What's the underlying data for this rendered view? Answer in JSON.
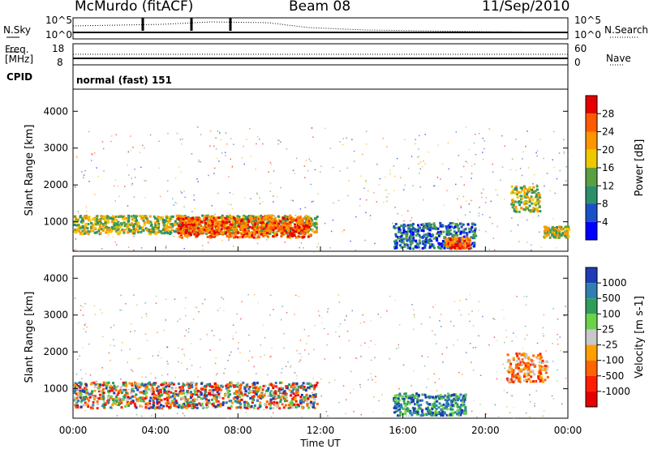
{
  "header": {
    "station": "McMurdo (fitACF)",
    "beam": "Beam 08",
    "date": "11/Sep/2010"
  },
  "noise_panel": {
    "left_label": "N.Sky",
    "right_label": "N.Search",
    "left_ticks": [
      "10^5",
      "10^0"
    ],
    "right_ticks": [
      "10^5",
      "10^0"
    ]
  },
  "freq_panel": {
    "left_label_line1": "Freq.",
    "left_label_line2": "[MHz]",
    "left_ticks": [
      "18",
      "8"
    ],
    "right_label": "Nave",
    "right_ticks": [
      "60",
      "0"
    ]
  },
  "cpid_panel": {
    "label": "CPID",
    "text": "normal (fast) 151"
  },
  "chart_data": [
    {
      "type": "heatmap",
      "title": "",
      "xlabel": "Time UT",
      "ylabel": "Slant Range [km]",
      "x_tick_labels": [
        "00:00",
        "04:00",
        "08:00",
        "12:00",
        "16:00",
        "20:00",
        "00:00"
      ],
      "y_tick_labels": [
        "1000",
        "2000",
        "3000",
        "4000"
      ],
      "ylim": [
        200,
        4600
      ],
      "colorbar": {
        "label": "Power [dB]",
        "ticks": [
          "28",
          "24",
          "20",
          "16",
          "12",
          "8",
          "4"
        ],
        "colors": [
          "#e60000",
          "#ff5a00",
          "#ff9600",
          "#f0c800",
          "#5aa040",
          "#2d8f6a",
          "#1a50c8",
          "#0000ff"
        ]
      },
      "regions": [
        {
          "t0": 0.0,
          "t1": 11.8,
          "r0": 700,
          "r1": 1200,
          "level": "mid"
        },
        {
          "t0": 5.0,
          "t1": 11.5,
          "r0": 600,
          "r1": 1150,
          "level": "high"
        },
        {
          "t0": 15.5,
          "t1": 19.5,
          "r0": 300,
          "r1": 1000,
          "level": "low"
        },
        {
          "t0": 18.0,
          "t1": 19.2,
          "r0": 300,
          "r1": 600,
          "level": "high"
        },
        {
          "t0": 21.2,
          "t1": 22.6,
          "r0": 1300,
          "r1": 2000,
          "level": "mid"
        },
        {
          "t0": 22.8,
          "t1": 24.0,
          "r0": 600,
          "r1": 900,
          "level": "mid"
        }
      ]
    },
    {
      "type": "heatmap",
      "title": "",
      "xlabel": "Time UT",
      "ylabel": "Slant Range [km]",
      "x_tick_labels": [
        "00:00",
        "04:00",
        "08:00",
        "12:00",
        "16:00",
        "20:00",
        "00:00"
      ],
      "y_tick_labels": [
        "1000",
        "2000",
        "3000",
        "4000"
      ],
      "ylim": [
        200,
        4600
      ],
      "colorbar": {
        "label": "Velocity [m s-1]",
        "ticks": [
          "1000",
          "500",
          "100",
          "25",
          "-25",
          "-100",
          "-500",
          "-1000"
        ],
        "colors": [
          "#1e3cb4",
          "#2f7fb0",
          "#2e9e5a",
          "#6bd24a",
          "#c8c8c8",
          "#ffa000",
          "#ff6400",
          "#ff1e00",
          "#e60000"
        ]
      },
      "regions": [
        {
          "t0": 0.0,
          "t1": 11.8,
          "r0": 500,
          "r1": 1200,
          "level": "mixed-low-velocity"
        },
        {
          "t0": 15.5,
          "t1": 19.0,
          "r0": 300,
          "r1": 900,
          "level": "positive"
        },
        {
          "t0": 21.0,
          "t1": 23.0,
          "r0": 1200,
          "r1": 2000,
          "level": "negative"
        }
      ]
    }
  ]
}
